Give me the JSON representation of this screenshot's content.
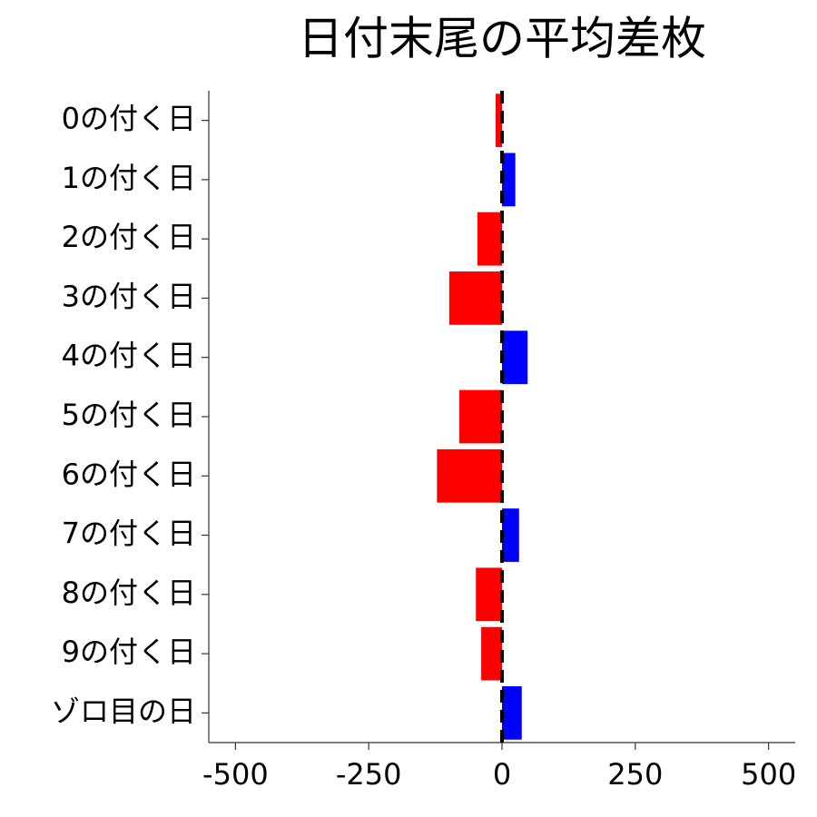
{
  "chart_data": {
    "type": "hbar",
    "title": "日付末尾の平均差枚",
    "categories": [
      "0の付く日",
      "1の付く日",
      "2の付く日",
      "3の付く日",
      "4の付く日",
      "5の付く日",
      "6の付く日",
      "7の付く日",
      "8の付く日",
      "9の付く日",
      "ゾロ目の日"
    ],
    "values": [
      -12,
      25,
      -46,
      -99,
      48,
      -80,
      -122,
      32,
      -49,
      -39,
      37
    ],
    "positive_color": "#0000ff",
    "negative_color": "#ff0000",
    "xlim": [
      -550,
      550
    ],
    "xticks": [
      -500,
      -250,
      0,
      250,
      500
    ],
    "vline": 0,
    "grid": false
  }
}
